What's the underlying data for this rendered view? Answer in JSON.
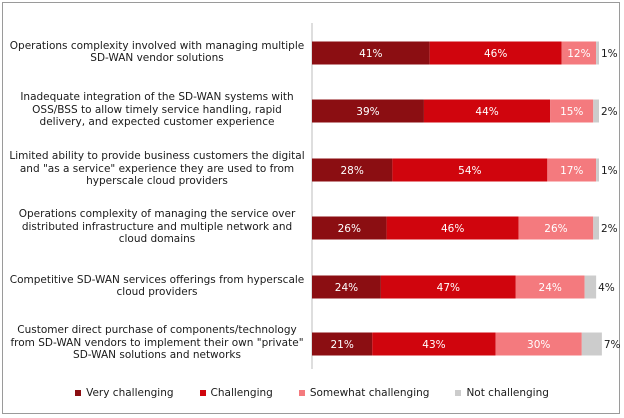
{
  "chart_data": {
    "type": "bar",
    "orientation": "horizontal",
    "stacked": true,
    "xlim": [
      0,
      100
    ],
    "categories": [
      [
        "Operations complexity involved with managing multiple",
        "SD-WAN vendor solutions"
      ],
      [
        "Inadequate integration of the SD-WAN systems with",
        "OSS/BSS to allow timely service handling, rapid",
        "delivery, and expected customer experience"
      ],
      [
        "Limited ability to provide business customers the digital",
        "and \"as a service\" experience they are used to from",
        "hyperscale cloud providers"
      ],
      [
        "Operations complexity of managing the service over",
        "distributed infrastructure and multiple network and",
        "cloud domains"
      ],
      [
        "Competitive SD-WAN services offerings from hyperscale",
        "cloud providers"
      ],
      [
        "Customer direct purchase of components/technology",
        "from SD-WAN vendors to implement their own \"private\"",
        "SD-WAN solutions and networks"
      ]
    ],
    "series": [
      {
        "name": "Very challenging",
        "color": "#8b0e12",
        "values": [
          41,
          39,
          28,
          26,
          24,
          21
        ]
      },
      {
        "name": "Challenging",
        "color": "#d0050d",
        "values": [
          46,
          44,
          54,
          46,
          47,
          43
        ]
      },
      {
        "name": "Somewhat challenging",
        "color": "#f47a7e",
        "values": [
          12,
          15,
          17,
          26,
          24,
          30
        ]
      },
      {
        "name": "Not challenging",
        "color": "#cccccc",
        "values": [
          1,
          2,
          1,
          2,
          4,
          7
        ]
      }
    ],
    "value_suffix": "%"
  }
}
